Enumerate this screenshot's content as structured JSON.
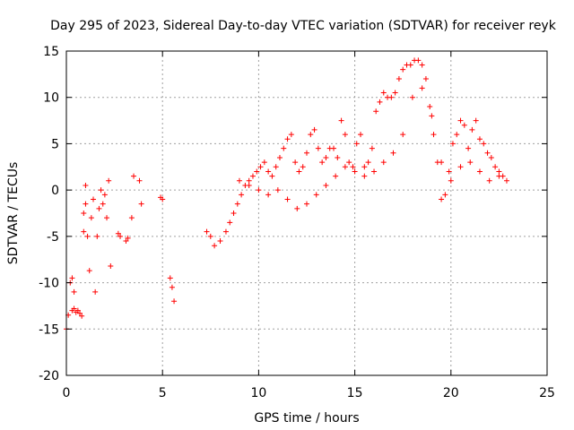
{
  "chart_data": {
    "type": "scatter",
    "title": "Day 295 of 2023, Sidereal Day-to-day VTEC variation (SDTVAR) for receiver reyk",
    "xlabel": "GPS time / hours",
    "ylabel": "SDTVAR / TECUs",
    "xlim": [
      0,
      25
    ],
    "ylim": [
      -20,
      15
    ],
    "xticks": [
      "0",
      "5",
      "10",
      "15",
      "20",
      "25"
    ],
    "yticks": [
      "15",
      "10",
      "5",
      "0",
      "-5",
      "-10",
      "-15",
      "-20"
    ],
    "grid": true,
    "marker": "+",
    "color": "#ff0000",
    "series": [
      {
        "name": "SDTVAR",
        "x": [
          0.0,
          0.1,
          0.2,
          0.3,
          0.3,
          0.4,
          0.4,
          0.5,
          0.6,
          0.7,
          0.8,
          0.9,
          0.9,
          1.0,
          1.0,
          1.1,
          1.2,
          1.3,
          1.4,
          1.5,
          1.6,
          1.7,
          1.8,
          1.9,
          2.0,
          2.1,
          2.2,
          2.3,
          2.7,
          2.8,
          3.1,
          3.2,
          3.4,
          3.5,
          3.8,
          3.9,
          4.9,
          5.0,
          5.4,
          5.5,
          5.6,
          7.3,
          7.5,
          7.7,
          8.0,
          8.3,
          8.5,
          8.7,
          8.9,
          9.1,
          9.3,
          9.5,
          9.7,
          9.9,
          10.1,
          10.3,
          10.5,
          10.7,
          10.9,
          11.1,
          11.3,
          11.5,
          11.7,
          11.9,
          12.1,
          12.3,
          12.5,
          12.7,
          12.9,
          13.1,
          13.3,
          13.5,
          13.7,
          13.9,
          14.1,
          14.3,
          14.5,
          14.7,
          14.9,
          15.1,
          15.3,
          15.5,
          15.7,
          15.9,
          16.1,
          16.3,
          16.5,
          16.7,
          16.9,
          17.1,
          17.3,
          17.5,
          17.7,
          17.9,
          18.1,
          18.3,
          18.5,
          18.7,
          18.9,
          19.1,
          19.3,
          19.5,
          19.7,
          19.9,
          20.1,
          20.3,
          20.5,
          20.7,
          20.9,
          21.1,
          21.3,
          21.5,
          21.7,
          21.9,
          22.1,
          22.3,
          22.5,
          22.7,
          22.9,
          9.0,
          9.5,
          10.0,
          10.5,
          11.0,
          11.5,
          12.0,
          12.5,
          13.0,
          13.5,
          14.0,
          14.5,
          15.0,
          15.5,
          16.0,
          16.5,
          17.0,
          17.5,
          18.0,
          18.5,
          19.0,
          19.5,
          20.0,
          20.5,
          21.0,
          21.5,
          22.0,
          22.5
        ],
        "y": [
          -15.0,
          -13.5,
          -10.0,
          -9.5,
          -13.0,
          -11.0,
          -12.8,
          -13.2,
          -13.0,
          -13.3,
          -13.6,
          -4.5,
          -2.5,
          -1.5,
          0.5,
          -5.0,
          -8.7,
          -3.0,
          -1.0,
          -11.0,
          -5.0,
          -2.0,
          0.0,
          -1.5,
          -0.5,
          -3.0,
          1.0,
          -8.2,
          -4.7,
          -5.0,
          -5.5,
          -5.2,
          -3.0,
          1.5,
          1.0,
          -1.5,
          -0.8,
          -1.0,
          -9.5,
          -10.5,
          -12.0,
          -4.5,
          -5.0,
          -6.0,
          -5.5,
          -4.5,
          -3.5,
          -2.5,
          -1.5,
          -0.5,
          0.5,
          1.0,
          1.5,
          2.0,
          2.5,
          3.0,
          2.0,
          1.5,
          2.5,
          3.5,
          4.5,
          5.5,
          6.0,
          3.0,
          2.0,
          2.5,
          4.0,
          6.0,
          6.5,
          4.5,
          3.0,
          3.5,
          4.5,
          4.5,
          3.5,
          7.5,
          6.0,
          3.0,
          2.5,
          5.0,
          6.0,
          2.5,
          3.0,
          4.5,
          8.5,
          9.5,
          10.5,
          10.0,
          10.0,
          10.5,
          12.0,
          13.0,
          13.5,
          13.5,
          14.0,
          14.0,
          13.5,
          12.0,
          9.0,
          6.0,
          3.0,
          -1.0,
          -0.5,
          2.0,
          5.0,
          6.0,
          7.5,
          7.0,
          4.5,
          6.5,
          7.5,
          5.5,
          5.0,
          4.0,
          3.5,
          2.5,
          2.0,
          1.5,
          1.0,
          1.0,
          0.5,
          0.0,
          -0.5,
          0.0,
          -1.0,
          -2.0,
          -1.5,
          -0.5,
          0.5,
          1.5,
          2.5,
          2.0,
          1.5,
          2.0,
          3.0,
          4.0,
          6.0,
          10.0,
          11.0,
          8.0,
          3.0,
          1.0,
          2.5,
          3.0,
          2.0,
          1.0,
          1.5
        ]
      }
    ]
  }
}
